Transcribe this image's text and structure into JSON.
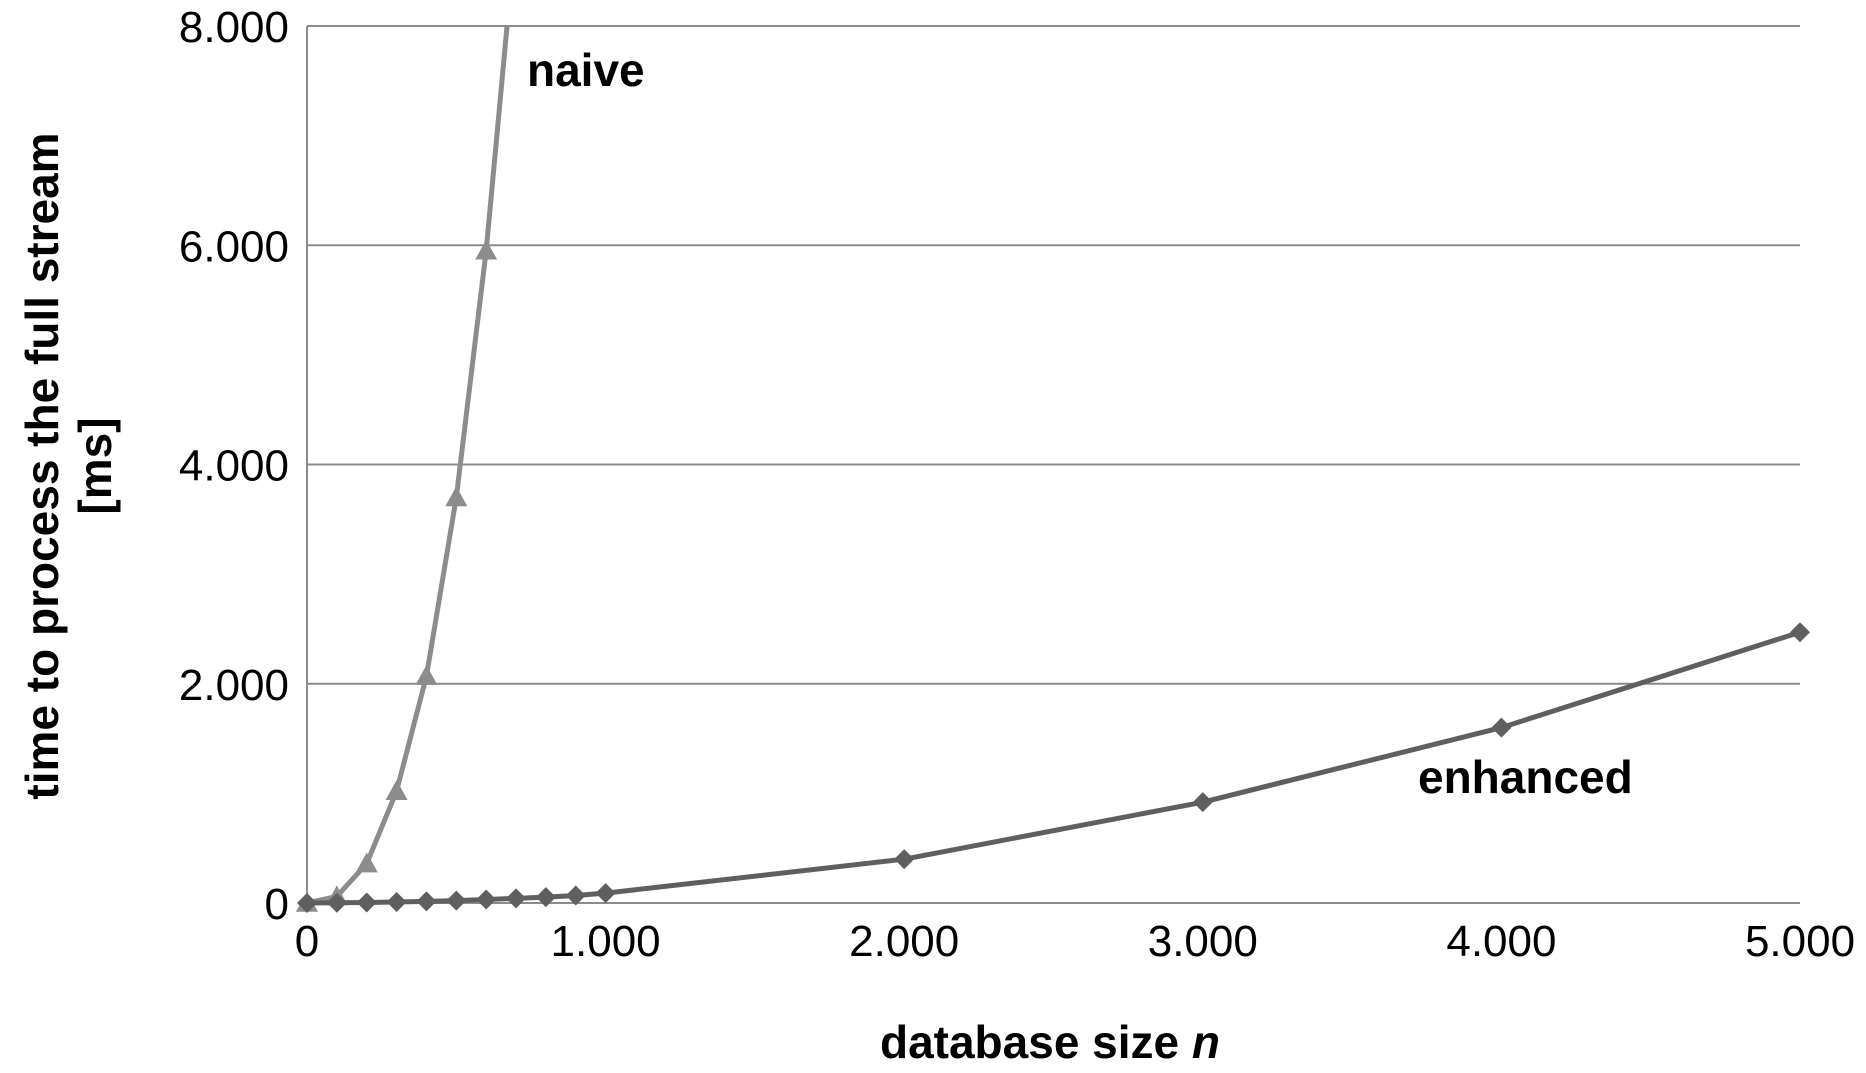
{
  "chart_data": {
    "type": "line",
    "xlabel": "database size",
    "xlabel_var": "n",
    "ylabel_line1": "time to process the full stream",
    "ylabel_line2": "[ms]",
    "xlim": [
      0,
      5000
    ],
    "ylim": [
      0,
      8000
    ],
    "x_ticks": [
      0,
      1000,
      2000,
      3000,
      4000,
      5000
    ],
    "x_tick_labels": [
      "0",
      "1.000",
      "2.000",
      "3.000",
      "4.000",
      "5.000"
    ],
    "y_ticks": [
      0,
      2000,
      4000,
      6000,
      8000
    ],
    "y_tick_labels": [
      "0",
      "2.000",
      "4.000",
      "6.000",
      "8.000"
    ],
    "grid": "horizontal",
    "series": [
      {
        "name": "naive",
        "color": "#8c8c8c",
        "marker": "triangle",
        "x": [
          0,
          100,
          200,
          300,
          400,
          500,
          600,
          670
        ],
        "y": [
          0,
          60,
          360,
          1020,
          2070,
          3700,
          5950,
          8000
        ]
      },
      {
        "name": "enhanced",
        "color": "#5f5f5f",
        "marker": "diamond",
        "x": [
          0,
          100,
          200,
          300,
          400,
          500,
          600,
          700,
          800,
          900,
          1000,
          2000,
          3000,
          4000,
          5000
        ],
        "y": [
          0,
          2,
          5,
          9,
          15,
          22,
          32,
          42,
          54,
          68,
          90,
          400,
          920,
          1600,
          2470
        ]
      }
    ],
    "series_marker_points": {
      "naive": 7,
      "enhanced": 15
    }
  }
}
